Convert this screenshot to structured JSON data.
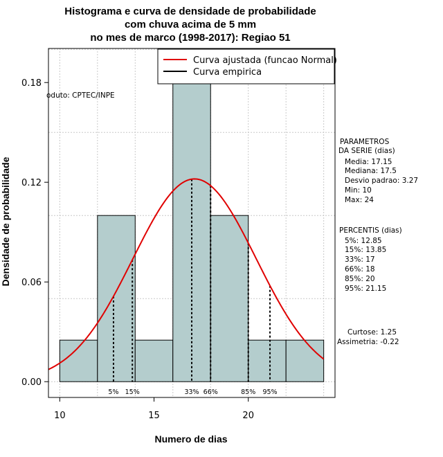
{
  "chart_data": {
    "type": "histogram",
    "title": [
      "Histograma e curva de densidade de probabilidade",
      "com chuva acima de 5 mm",
      "no mes de marco (1998-2017): Regiao 51"
    ],
    "xlabel": "Numero de dias",
    "ylabel": "Densidade de probabilidade",
    "xlim": [
      9.4,
      24.6
    ],
    "ylim": [
      -0.0095,
      0.2005
    ],
    "x_ticks": [
      10,
      15,
      20
    ],
    "y_ticks": [
      0.0,
      0.06,
      0.12,
      0.18
    ],
    "y_tick_labels": [
      "0.00",
      "0.06",
      "0.12",
      "0.18"
    ],
    "grid_x": [
      10,
      12,
      14,
      16,
      18,
      20,
      22,
      24
    ],
    "grid_y": [
      0.0,
      0.05,
      0.1,
      0.15,
      0.2
    ],
    "bins": [
      {
        "left": 10,
        "right": 12,
        "density": 0.025
      },
      {
        "left": 12,
        "right": 14,
        "density": 0.1
      },
      {
        "left": 14,
        "right": 16,
        "density": 0.025
      },
      {
        "left": 16,
        "right": 18,
        "density": 0.2
      },
      {
        "left": 18,
        "right": 20,
        "density": 0.1
      },
      {
        "left": 20,
        "right": 22,
        "density": 0.025
      },
      {
        "left": 22,
        "right": 24,
        "density": 0.025
      }
    ],
    "normal_fit": {
      "mean": 17.15,
      "sd": 3.27,
      "x_range": [
        9.4,
        24
      ]
    },
    "percentile_lines": [
      {
        "label": "5%",
        "x": 12.85
      },
      {
        "label": "15%",
        "x": 13.85
      },
      {
        "label": "33%",
        "x": 17
      },
      {
        "label": "66%",
        "x": 18
      },
      {
        "label": "85%",
        "x": 20
      },
      {
        "label": "95%",
        "x": 21.15
      }
    ],
    "legend": [
      {
        "label": "Curva ajustada (funcao Normal)",
        "color": "#e00000"
      },
      {
        "label": "Curva empirica",
        "color": "#000000"
      }
    ],
    "legend_position": "top-right",
    "annotation": "oduto: CPTEC/INPE",
    "bar_color": "#b4cdcd",
    "curve_color": "#e00000"
  },
  "side_panel": {
    "params_title": [
      "PARAMETROS",
      "DA SERIE (dias)"
    ],
    "params": [
      "Media: 17.15",
      "Mediana: 17.5",
      "Desvio padrao: 3.27",
      "Min: 10",
      "Max: 24"
    ],
    "percentis_title": "PERCENTIS (dias)",
    "percentis": [
      "5%: 12.85",
      "15%: 13.85",
      "33%: 17",
      "66%: 18",
      "85%: 20",
      "95%: 21.15"
    ],
    "stats": [
      "Curtose: 1.25",
      "Assimetria: -0.22"
    ]
  }
}
